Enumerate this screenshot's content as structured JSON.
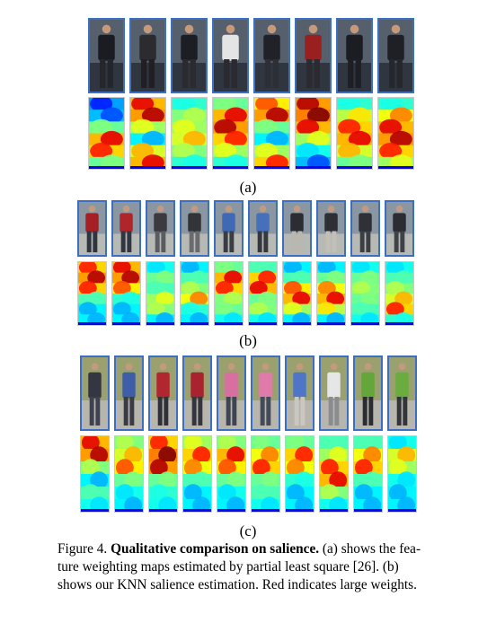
{
  "panels": [
    {
      "label": "(a)",
      "columns": 8,
      "photos": [
        {
          "scene": "dark-street",
          "person": "walking away",
          "top_color": "#1a1c22",
          "bottom_color": "#25262c"
        },
        {
          "scene": "dark-street",
          "person": "walking with red bag",
          "top_color": "#2b2b30",
          "bottom_color": "#1f1f24"
        },
        {
          "scene": "dark-street",
          "person": "walking away",
          "top_color": "#1c1e24",
          "bottom_color": "#2a2a2f"
        },
        {
          "scene": "dark-street",
          "person": "white coat",
          "top_color": "#e4e4e4",
          "bottom_color": "#2a2a30"
        },
        {
          "scene": "dark-street",
          "person": "walking away",
          "top_color": "#202228",
          "bottom_color": "#2d2f36"
        },
        {
          "scene": "dark-street",
          "person": "red coat",
          "top_color": "#9a2020",
          "bottom_color": "#2a2a30"
        },
        {
          "scene": "dark-street",
          "person": "dark coat",
          "top_color": "#1b1d22",
          "bottom_color": "#1e1f25"
        },
        {
          "scene": "dark-street",
          "person": "dark coat",
          "top_color": "#1e2026",
          "bottom_color": "#26272d"
        }
      ],
      "heatmaps": [
        {
          "intensity": [
            0.15,
            0.2,
            0.5,
            0.9,
            0.85,
            0.5
          ]
        },
        {
          "intensity": [
            0.9,
            0.95,
            0.6,
            0.3,
            0.7,
            0.9
          ]
        },
        {
          "intensity": [
            0.4,
            0.55,
            0.6,
            0.7,
            0.55,
            0.4
          ]
        },
        {
          "intensity": [
            0.5,
            0.9,
            0.95,
            0.85,
            0.6,
            0.4
          ]
        },
        {
          "intensity": [
            0.8,
            0.95,
            0.5,
            0.3,
            0.6,
            0.85
          ]
        },
        {
          "intensity": [
            0.95,
            1.0,
            0.9,
            0.6,
            0.35,
            0.2
          ]
        },
        {
          "intensity": [
            0.4,
            0.65,
            0.85,
            0.9,
            0.7,
            0.5
          ]
        },
        {
          "intensity": [
            0.4,
            0.75,
            0.9,
            0.95,
            0.85,
            0.6
          ]
        }
      ]
    },
    {
      "label": "(b)",
      "columns": 10,
      "photos": [
        {
          "scene": "plaza",
          "person": "red jacket",
          "top_color": "#a51f24",
          "bottom_color": "#2e3440"
        },
        {
          "scene": "plaza",
          "person": "red jacket",
          "top_color": "#b0252a",
          "bottom_color": "#303642"
        },
        {
          "scene": "plaza",
          "person": "dark coat with red bag",
          "top_color": "#3a3a3f",
          "bottom_color": "#5a5c62"
        },
        {
          "scene": "plaza",
          "person": "dark coat with red bag",
          "top_color": "#333438",
          "bottom_color": "#6a6b70"
        },
        {
          "scene": "plaza",
          "person": "blue jacket",
          "top_color": "#3f68b5",
          "bottom_color": "#3b3d44"
        },
        {
          "scene": "plaza",
          "person": "blue jacket",
          "top_color": "#4670ba",
          "bottom_color": "#36383f"
        },
        {
          "scene": "plaza",
          "person": "stroller",
          "top_color": "#2c2d32",
          "bottom_color": "#b9b7ae"
        },
        {
          "scene": "plaza",
          "person": "stroller",
          "top_color": "#2e2f34",
          "bottom_color": "#c2c0b6"
        },
        {
          "scene": "plaza",
          "person": "dark coat with blue bag",
          "top_color": "#303136",
          "bottom_color": "#3c3e45"
        },
        {
          "scene": "plaza",
          "person": "dark coat with blue bag",
          "top_color": "#2c2d33",
          "bottom_color": "#40424a"
        }
      ],
      "heatmaps": [
        {
          "intensity": [
            0.85,
            0.95,
            0.85,
            0.45,
            0.3,
            0.3
          ]
        },
        {
          "intensity": [
            0.9,
            0.95,
            0.8,
            0.4,
            0.3,
            0.3
          ]
        },
        {
          "intensity": [
            0.35,
            0.5,
            0.45,
            0.6,
            0.55,
            0.3
          ]
        },
        {
          "intensity": [
            0.3,
            0.45,
            0.55,
            0.75,
            0.4,
            0.3
          ]
        },
        {
          "intensity": [
            0.5,
            0.9,
            0.85,
            0.55,
            0.5,
            0.35
          ]
        },
        {
          "intensity": [
            0.45,
            0.85,
            0.9,
            0.5,
            0.55,
            0.35
          ]
        },
        {
          "intensity": [
            0.3,
            0.45,
            0.8,
            0.9,
            0.6,
            0.3
          ]
        },
        {
          "intensity": [
            0.3,
            0.5,
            0.75,
            0.9,
            0.65,
            0.3
          ]
        },
        {
          "intensity": [
            0.35,
            0.5,
            0.55,
            0.5,
            0.45,
            0.35
          ]
        },
        {
          "intensity": [
            0.35,
            0.45,
            0.55,
            0.7,
            0.85,
            0.4
          ]
        }
      ]
    },
    {
      "label": "(c)",
      "columns": 10,
      "photos": [
        {
          "scene": "campus",
          "person": "dark jacket",
          "top_color": "#343642",
          "bottom_color": "#3d4150"
        },
        {
          "scene": "campus",
          "person": "blue jacket",
          "top_color": "#3e5ea8",
          "bottom_color": "#3a3c44"
        },
        {
          "scene": "campus",
          "person": "red jacket",
          "top_color": "#b22630",
          "bottom_color": "#2f3038"
        },
        {
          "scene": "campus",
          "person": "red jacket",
          "top_color": "#a8232d",
          "bottom_color": "#34353d"
        },
        {
          "scene": "campus",
          "person": "pink top",
          "top_color": "#d86fa0",
          "bottom_color": "#3e4452"
        },
        {
          "scene": "campus",
          "person": "pink top",
          "top_color": "#e07aa8",
          "bottom_color": "#434a58"
        },
        {
          "scene": "campus",
          "person": "blue shirt",
          "top_color": "#4f76c6",
          "bottom_color": "#c9c7bf"
        },
        {
          "scene": "campus",
          "person": "white shirt",
          "top_color": "#e6e6e6",
          "bottom_color": "#8a8c90"
        },
        {
          "scene": "campus",
          "person": "green top",
          "top_color": "#64a63a",
          "bottom_color": "#2c2d33"
        },
        {
          "scene": "campus",
          "person": "green top",
          "top_color": "#6aac3e",
          "bottom_color": "#32343a"
        }
      ],
      "heatmaps": [
        {
          "intensity": [
            0.9,
            0.95,
            0.55,
            0.3,
            0.45,
            0.35
          ]
        },
        {
          "intensity": [
            0.55,
            0.7,
            0.8,
            0.5,
            0.35,
            0.3
          ]
        },
        {
          "intensity": [
            0.85,
            1.0,
            0.95,
            0.5,
            0.4,
            0.35
          ]
        },
        {
          "intensity": [
            0.6,
            0.85,
            0.75,
            0.45,
            0.3,
            0.3
          ]
        },
        {
          "intensity": [
            0.55,
            0.9,
            0.8,
            0.5,
            0.35,
            0.3
          ]
        },
        {
          "intensity": [
            0.5,
            0.75,
            0.85,
            0.5,
            0.45,
            0.35
          ]
        },
        {
          "intensity": [
            0.5,
            0.85,
            0.75,
            0.4,
            0.3,
            0.3
          ]
        },
        {
          "intensity": [
            0.45,
            0.6,
            0.85,
            0.9,
            0.55,
            0.35
          ]
        },
        {
          "intensity": [
            0.45,
            0.75,
            0.85,
            0.45,
            0.3,
            0.3
          ]
        },
        {
          "intensity": [
            0.35,
            0.7,
            0.6,
            0.35,
            0.3,
            0.3
          ]
        }
      ]
    }
  ],
  "caption": {
    "figure_label": "Figure 4.",
    "title": "Qualitative comparison on salience.",
    "line1_rest": "(a) shows the fea-",
    "line2": "ture weighting maps estimated by partial least square [26].  (b)",
    "line3": "shows our KNN salience estimation. Red indicates large weights."
  }
}
